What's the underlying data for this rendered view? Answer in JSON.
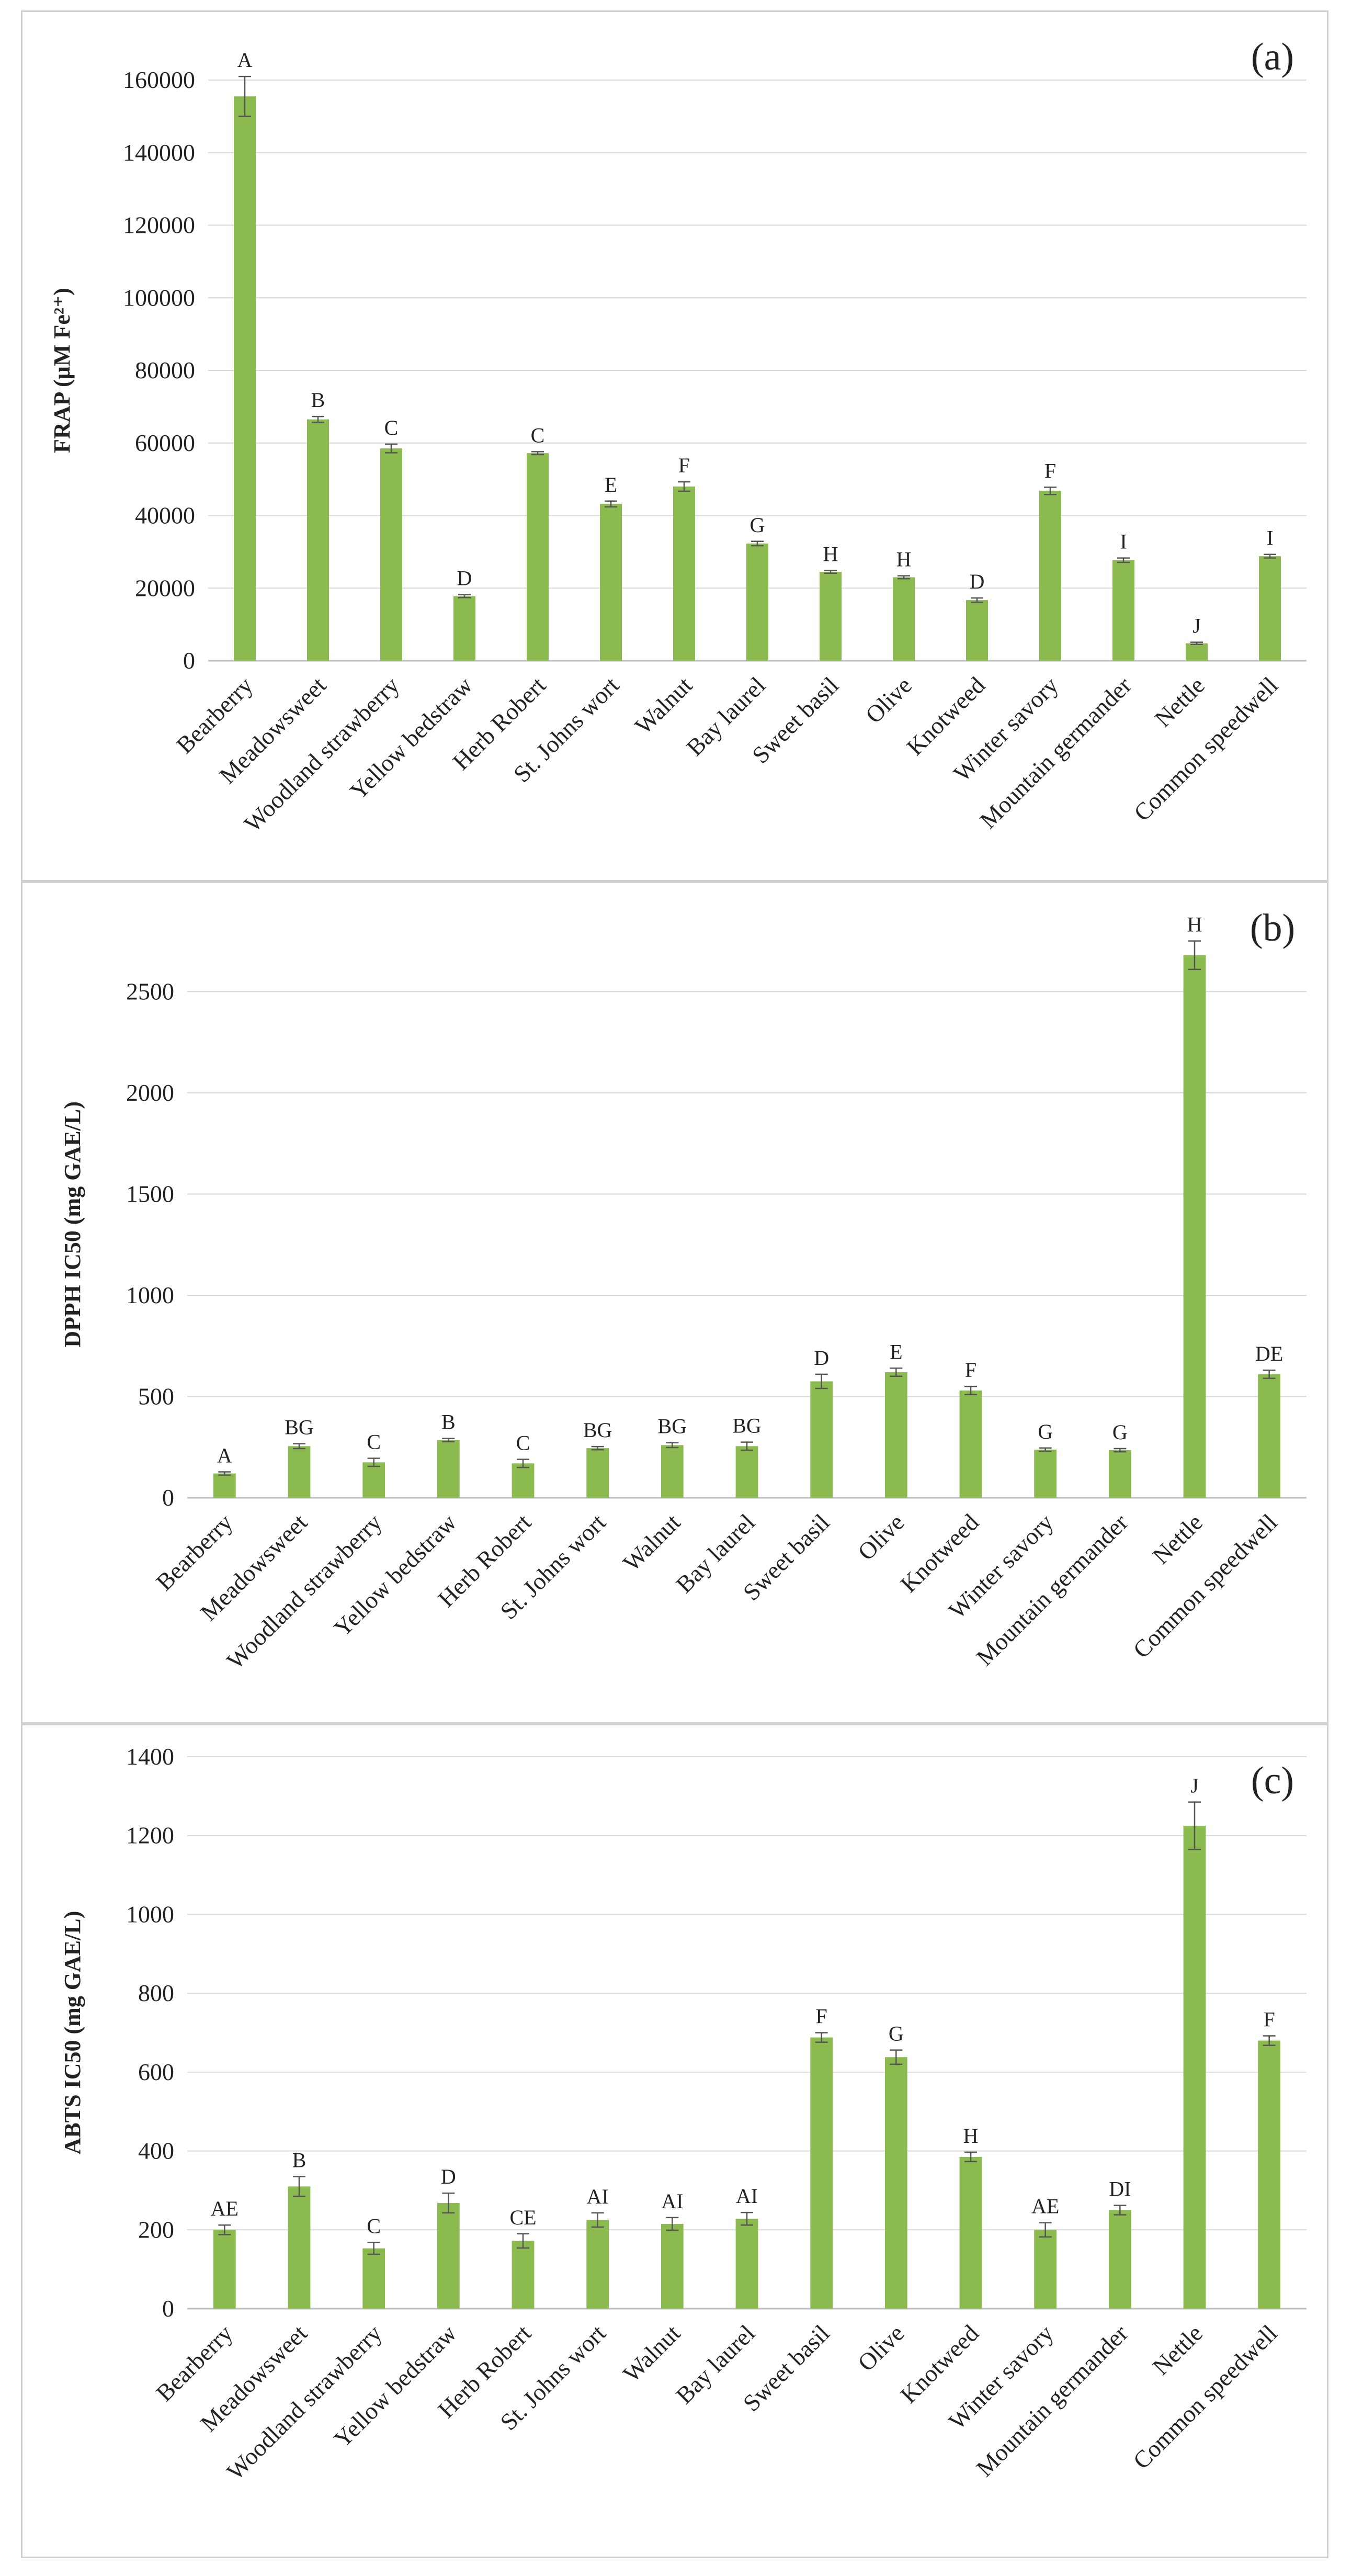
{
  "figure": {
    "bar_color": "#8BBB4F",
    "grid_color": "#d9d9d9",
    "axis_color": "#bfbfbf",
    "error_color": "#555555"
  },
  "chart_data": [
    {
      "panel": "(a)",
      "type": "bar",
      "title": "",
      "xlabel": "",
      "ylabel": "FRAP (µM Fe²⁺)",
      "ylim": [
        0,
        160000
      ],
      "yticks": [
        0,
        20000,
        40000,
        60000,
        80000,
        100000,
        120000,
        140000,
        160000
      ],
      "grid": true,
      "categories": [
        "Bearberry",
        "Meadowsweet",
        "Woodland strawberry",
        "Yellow bedstraw",
        "Herb Robert",
        "St. Johns wort",
        "Walnut",
        "Bay laurel",
        "Sweet basil",
        "Olive",
        "Knotweed",
        "Winter savory",
        "Mountain germander",
        "Nettle",
        "Common speedwell"
      ],
      "values": [
        155500,
        66500,
        58500,
        17800,
        57200,
        43200,
        48000,
        32300,
        24500,
        23000,
        16700,
        46800,
        27700,
        4800,
        28800
      ],
      "errors": [
        5500,
        800,
        1200,
        400,
        400,
        800,
        1300,
        600,
        400,
        400,
        600,
        1000,
        600,
        300,
        500
      ],
      "significance": [
        "A",
        "B",
        "C",
        "D",
        "C",
        "E",
        "F",
        "G",
        "H",
        "H",
        "D",
        "F",
        "I",
        "J",
        "I"
      ]
    },
    {
      "panel": "(b)",
      "type": "bar",
      "title": "",
      "xlabel": "",
      "ylabel": "DPPH IC50 (mg GAE/L)",
      "ylim": [
        0,
        2700
      ],
      "yticks": [
        0,
        500,
        1000,
        1500,
        2000,
        2500
      ],
      "grid": true,
      "categories": [
        "Bearberry",
        "Meadowsweet",
        "Woodland strawberry",
        "Yellow bedstraw",
        "Herb Robert",
        "St. Johns wort",
        "Walnut",
        "Bay laurel",
        "Sweet basil",
        "Olive",
        "Knotweed",
        "Winter savory",
        "Mountain germander",
        "Nettle",
        "Common speedwell"
      ],
      "values": [
        120,
        255,
        175,
        285,
        170,
        245,
        260,
        255,
        575,
        620,
        530,
        238,
        235,
        2680,
        610
      ],
      "errors": [
        8,
        12,
        20,
        8,
        20,
        8,
        12,
        20,
        35,
        20,
        20,
        8,
        8,
        70,
        20
      ],
      "significance": [
        "A",
        "BG",
        "C",
        "B",
        "C",
        "BG",
        "BG",
        "BG",
        "D",
        "E",
        "F",
        "G",
        "G",
        "H",
        "DE"
      ]
    },
    {
      "panel": "(c)",
      "type": "bar",
      "title": "",
      "xlabel": "",
      "ylabel": "ABTS IC50 (mg GAE/L)",
      "ylim": [
        0,
        1400
      ],
      "yticks": [
        0,
        200,
        400,
        600,
        800,
        1000,
        1200,
        1400
      ],
      "grid": true,
      "categories": [
        "Bearberry",
        "Meadowsweet",
        "Woodland strawberry",
        "Yellow bedstraw",
        "Herb Robert",
        "St. Johns wort",
        "Walnut",
        "Bay laurel",
        "Sweet basil",
        "Olive",
        "Knotweed",
        "Winter savory",
        "Mountain germander",
        "Nettle",
        "Common speedwell"
      ],
      "values": [
        200,
        310,
        153,
        268,
        172,
        225,
        215,
        228,
        688,
        638,
        385,
        200,
        250,
        1225,
        680
      ],
      "errors": [
        12,
        25,
        15,
        25,
        18,
        18,
        16,
        16,
        12,
        18,
        12,
        18,
        12,
        60,
        12
      ],
      "significance": [
        "AE",
        "B",
        "C",
        "D",
        "CE",
        "AI",
        "AI",
        "AI",
        "F",
        "G",
        "H",
        "AE",
        "DI",
        "J",
        "F"
      ]
    }
  ]
}
